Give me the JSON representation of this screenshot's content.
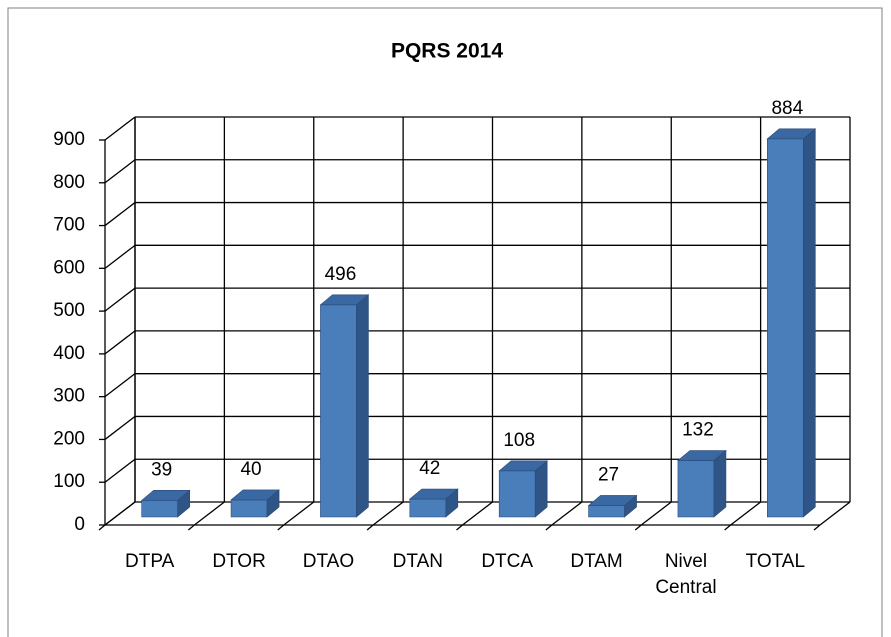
{
  "chart_data": {
    "type": "bar3d",
    "title": "PQRS 2014",
    "categories": [
      "DTPA",
      "DTOR",
      "DTAO",
      "DTAN",
      "DTCA",
      "DTAM",
      "Nivel Central",
      "TOTAL"
    ],
    "values": [
      39,
      40,
      496,
      42,
      108,
      27,
      132,
      884
    ],
    "color": "#4a7ebb",
    "ylim": [
      0,
      900
    ],
    "yticks": [
      0,
      100,
      200,
      300,
      400,
      500,
      600,
      700,
      800,
      900
    ],
    "grid": true
  }
}
